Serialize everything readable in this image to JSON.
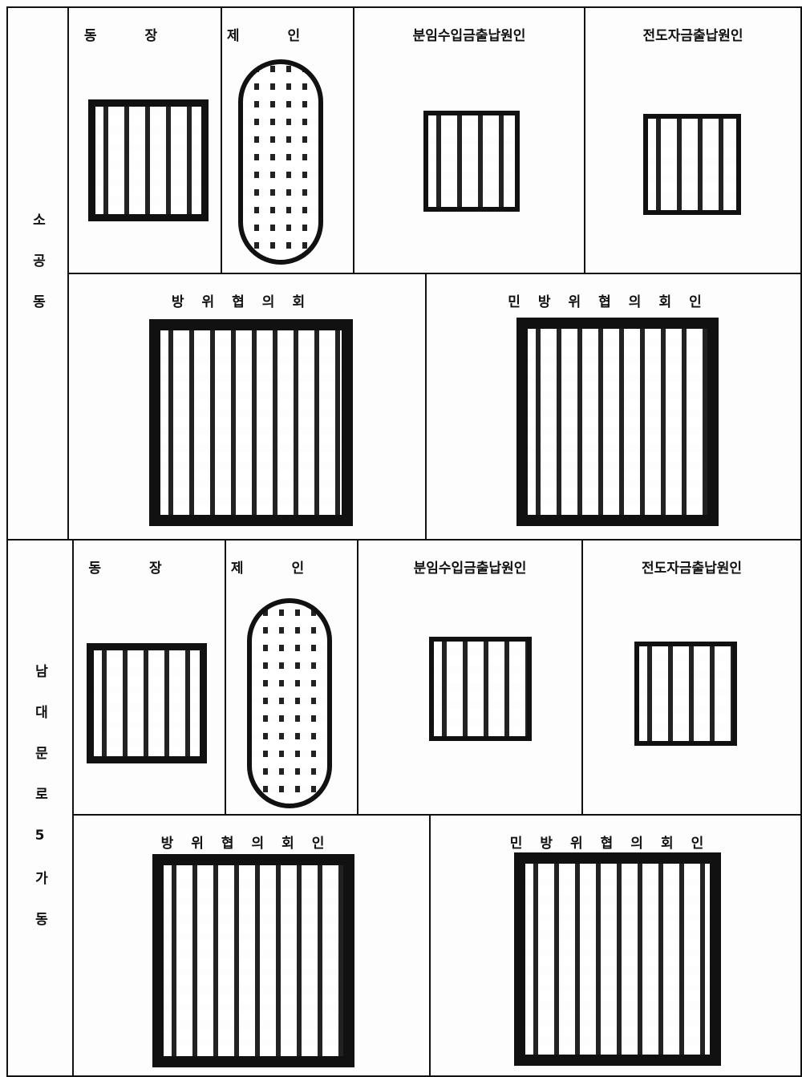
{
  "sections": [
    {
      "label": "소공동",
      "top": [
        {
          "title": "동장"
        },
        {
          "title": "제인"
        },
        {
          "title": "분임수입금출납원인"
        },
        {
          "title": "전도자금출납원인"
        }
      ],
      "bottom": [
        {
          "title": "방위협의회"
        },
        {
          "title": "민방위협의회인"
        }
      ]
    },
    {
      "label": "남대문로5가동",
      "top": [
        {
          "title": "동장"
        },
        {
          "title": "제인"
        },
        {
          "title": "분임수입금출납원인"
        },
        {
          "title": "전도자금출납원인"
        }
      ],
      "bottom": [
        {
          "title": "방위협의회인"
        },
        {
          "title": "민방위협의회인"
        }
      ]
    }
  ]
}
